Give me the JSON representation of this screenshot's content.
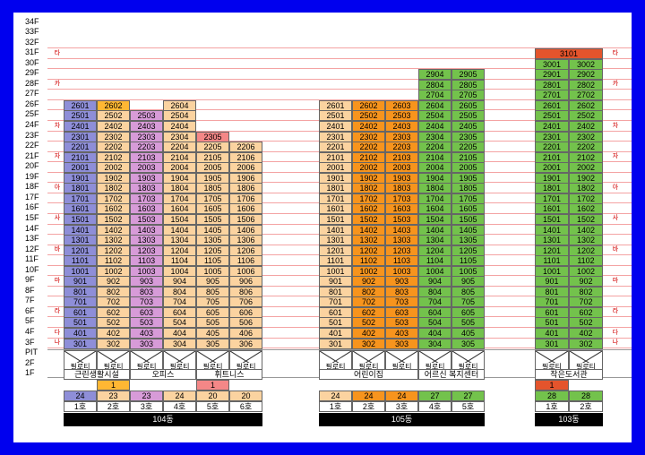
{
  "colors": {
    "purple": "#8e8ed8",
    "orange": "#fbd3a0",
    "yellow": "#ffb733",
    "pink": "#d79bd8",
    "salmon": "#f48787",
    "dorange": "#f7941d",
    "green": "#73c24c",
    "red": "#e4542c",
    "white": "#ffffff"
  },
  "floor_labels": [
    "34F",
    "33F",
    "32F",
    "31F",
    "30F",
    "29F",
    "28F",
    "27F",
    "26F",
    "25F",
    "24F",
    "23F",
    "22F",
    "21F",
    "20F",
    "19F",
    "18F",
    "17F",
    "16F",
    "15F",
    "14F",
    "13F",
    "12F",
    "11F",
    "10F",
    "9F",
    "8F",
    "7F",
    "6F",
    "5F",
    "4F",
    "3F",
    "PIT",
    "2F",
    "1F"
  ],
  "side_notes": [
    {
      "text": "타",
      "row": 3
    },
    {
      "text": "카",
      "row": 6
    },
    {
      "text": "차",
      "row": 10
    },
    {
      "text": "자",
      "row": 13
    },
    {
      "text": "아",
      "row": 16
    },
    {
      "text": "사",
      "row": 19
    },
    {
      "text": "바",
      "row": 22
    },
    {
      "text": "마",
      "row": 25
    },
    {
      "text": "라",
      "row": 28
    },
    {
      "text": "다",
      "row": 30
    },
    {
      "text": "나",
      "row": 31
    }
  ],
  "piloti_label": "필로티",
  "buildings": [
    {
      "name": "104동",
      "facilities": [
        "근린생활시설",
        "오피스",
        "휘트니스"
      ],
      "lines": [
        {
          "top": 26,
          "color": "purple",
          "special": []
        },
        {
          "top": 26,
          "color": "orange",
          "special": [
            {
              "floor": 26,
              "color": "yellow",
              "label": "2602"
            }
          ]
        },
        {
          "top": 25,
          "color": "pink",
          "special": []
        },
        {
          "top": 26,
          "color": "orange",
          "special": []
        },
        {
          "top": 23,
          "color": "orange",
          "special": [
            {
              "floor": 23,
              "color": "salmon",
              "label": "2305"
            }
          ]
        },
        {
          "top": 22,
          "color": "orange",
          "special": []
        }
      ],
      "legend": [
        {
          "count": "24",
          "color": "purple",
          "extra": "",
          "label": "1호"
        },
        {
          "count": "23",
          "color": "orange",
          "extra": "1",
          "extra_color": "yellow",
          "label": "2호"
        },
        {
          "count": "23",
          "color": "pink",
          "extra": "",
          "label": "3호"
        },
        {
          "count": "24",
          "color": "orange",
          "extra": "",
          "label": "4호"
        },
        {
          "count": "20",
          "color": "orange",
          "extra": "1",
          "extra_color": "salmon",
          "label": "5호"
        },
        {
          "count": "20",
          "color": "orange",
          "extra": "",
          "label": "6호"
        }
      ]
    },
    {
      "name": "105동",
      "facilities": [
        "어린이집",
        "어르신 복지센터"
      ],
      "lines": [
        {
          "top": 26,
          "color": "orange",
          "special": []
        },
        {
          "top": 26,
          "color": "dorange",
          "special": []
        },
        {
          "top": 26,
          "color": "dorange",
          "special": []
        },
        {
          "top": 29,
          "color": "green",
          "special": []
        },
        {
          "top": 29,
          "color": "green",
          "special": []
        }
      ],
      "legend": [
        {
          "count": "24",
          "color": "orange",
          "extra": "",
          "label": "1호"
        },
        {
          "count": "24",
          "color": "dorange",
          "extra": "",
          "label": "2호"
        },
        {
          "count": "24",
          "color": "dorange",
          "extra": "",
          "label": "3호"
        },
        {
          "count": "27",
          "color": "green",
          "extra": "",
          "label": "4호"
        },
        {
          "count": "27",
          "color": "green",
          "extra": "",
          "label": "5호"
        }
      ]
    },
    {
      "name": "103동",
      "facilities": [
        "작은도서관"
      ],
      "lines": [
        {
          "top": 31,
          "color": "green",
          "special": [
            {
              "floor": 31,
              "color": "red",
              "label": "3101",
              "span": 2
            }
          ]
        },
        {
          "top": 30,
          "color": "green",
          "special": []
        }
      ],
      "legend": [
        {
          "count": "28",
          "color": "green",
          "extra": "1",
          "extra_color": "red",
          "label": "1호"
        },
        {
          "count": "28",
          "color": "green",
          "extra": "",
          "label": "2호"
        }
      ]
    }
  ]
}
